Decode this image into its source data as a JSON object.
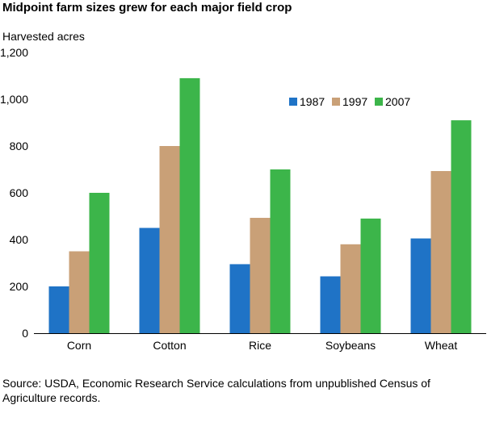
{
  "chart_data": {
    "type": "bar",
    "title": "Midpoint farm sizes grew for each major field crop",
    "ylabel": "Harvested acres",
    "xlabel": "",
    "categories": [
      "Corn",
      "Cotton",
      "Rice",
      "Soybeans",
      "Wheat"
    ],
    "series": [
      {
        "name": "1987",
        "color": "#1f73c6",
        "values": [
          200,
          450,
          295,
          243,
          405
        ]
      },
      {
        "name": "1997",
        "color": "#c9a077",
        "values": [
          350,
          800,
          493,
          380,
          693
        ]
      },
      {
        "name": "2007",
        "color": "#3cb54a",
        "values": [
          600,
          1090,
          700,
          490,
          910
        ]
      }
    ],
    "ylim": [
      0,
      1200
    ],
    "yticks": [
      "0",
      "200",
      "400",
      "600",
      "800",
      "1,000",
      "1,200"
    ],
    "ytick_values": [
      0,
      200,
      400,
      600,
      800,
      1000,
      1200
    ],
    "grid": false,
    "legend_position": "top-right",
    "source": "Source: USDA, Economic Research Service calculations from unpublished Census of Agriculture records."
  }
}
